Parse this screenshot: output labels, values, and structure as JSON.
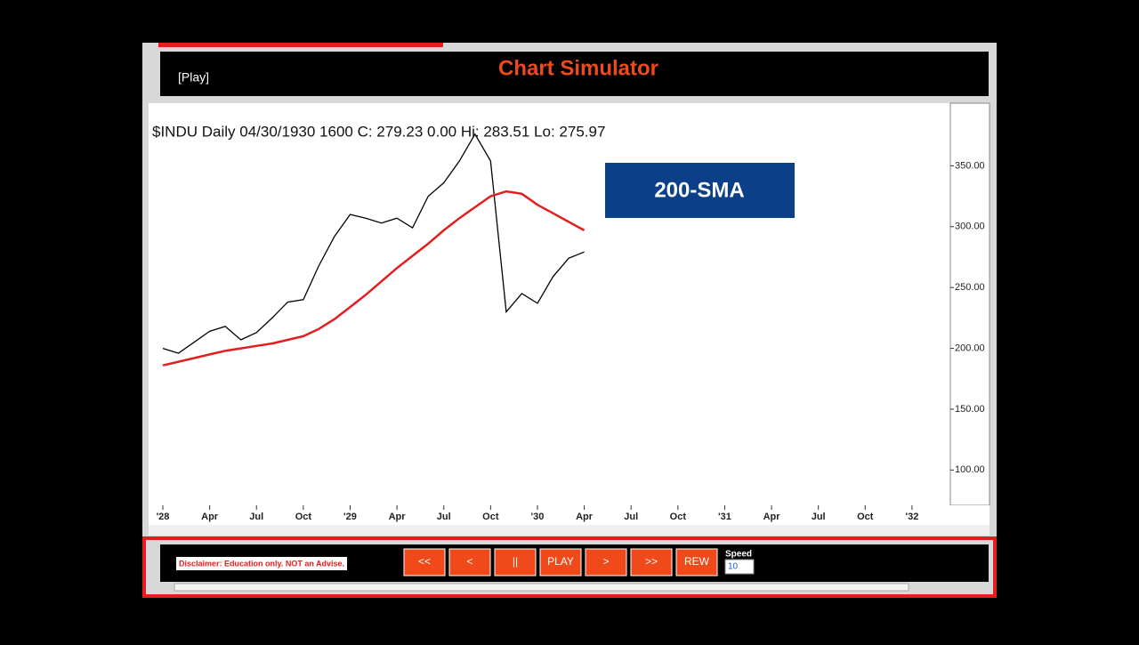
{
  "window": {
    "title": "Chart Simulator",
    "mode": "[Play]"
  },
  "chart_data": {
    "type": "line",
    "title": "$INDU Daily 04/30/1930 1600 C: 279.23 0.00 Hi: 283.51 Lo: 275.97",
    "categories": [
      "'28",
      null,
      null,
      "Apr",
      null,
      null,
      "Jul",
      null,
      null,
      "Oct",
      null,
      null,
      "'29",
      null,
      null,
      "Apr",
      null,
      null,
      "Jul",
      null,
      null,
      "Oct",
      null,
      null,
      "'30",
      null,
      null,
      "Apr",
      null,
      null,
      "Jul",
      null,
      null,
      "Oct",
      null,
      null,
      "'31",
      null,
      null,
      "Apr",
      null,
      null,
      "Jul",
      null,
      null,
      "Oct",
      null,
      null,
      "'32",
      null,
      null
    ],
    "series": [
      {
        "color": "#000000",
        "values": [
          200,
          196,
          205,
          214,
          218,
          207,
          213,
          225,
          238,
          240,
          268,
          292,
          310,
          307,
          303,
          307,
          299,
          325,
          336,
          354,
          376,
          354,
          230,
          245,
          237,
          259,
          274,
          279.23,
          null,
          null,
          null,
          null,
          null,
          null,
          null,
          null,
          null,
          null,
          null,
          null,
          null,
          null,
          null,
          null,
          null,
          null,
          null,
          null,
          null,
          null,
          null
        ]
      },
      {
        "name": "200-SMA",
        "color": "#e31e1e",
        "values": [
          186,
          189,
          192,
          195,
          198,
          200,
          202,
          204,
          207,
          210,
          216,
          224,
          234,
          244,
          255,
          266,
          276,
          286,
          297,
          307,
          316,
          325,
          329,
          327,
          318,
          311,
          304,
          297,
          null,
          null,
          null,
          null,
          null,
          null,
          null,
          null,
          null,
          null,
          null,
          null,
          null,
          null,
          null,
          null,
          null,
          null,
          null,
          null,
          null,
          null,
          null
        ]
      }
    ],
    "ylim": [
      71,
      400
    ],
    "yticks": [
      {
        "value": 100,
        "label": "100.00"
      },
      {
        "value": 150,
        "label": "150.00"
      },
      {
        "value": 200,
        "label": "200.00"
      },
      {
        "value": 250,
        "label": "250.00"
      },
      {
        "value": 300,
        "label": "300.00"
      },
      {
        "value": 350,
        "label": "350.00"
      }
    ],
    "legend": "top-right"
  },
  "controls": {
    "disclaimer": "Disclaimer: Education only. NOT an Advise.",
    "buttons": [
      "<<",
      "<",
      "||",
      "PLAY",
      ">",
      ">>",
      "REW"
    ],
    "speed_label": "Speed",
    "speed": "10"
  }
}
